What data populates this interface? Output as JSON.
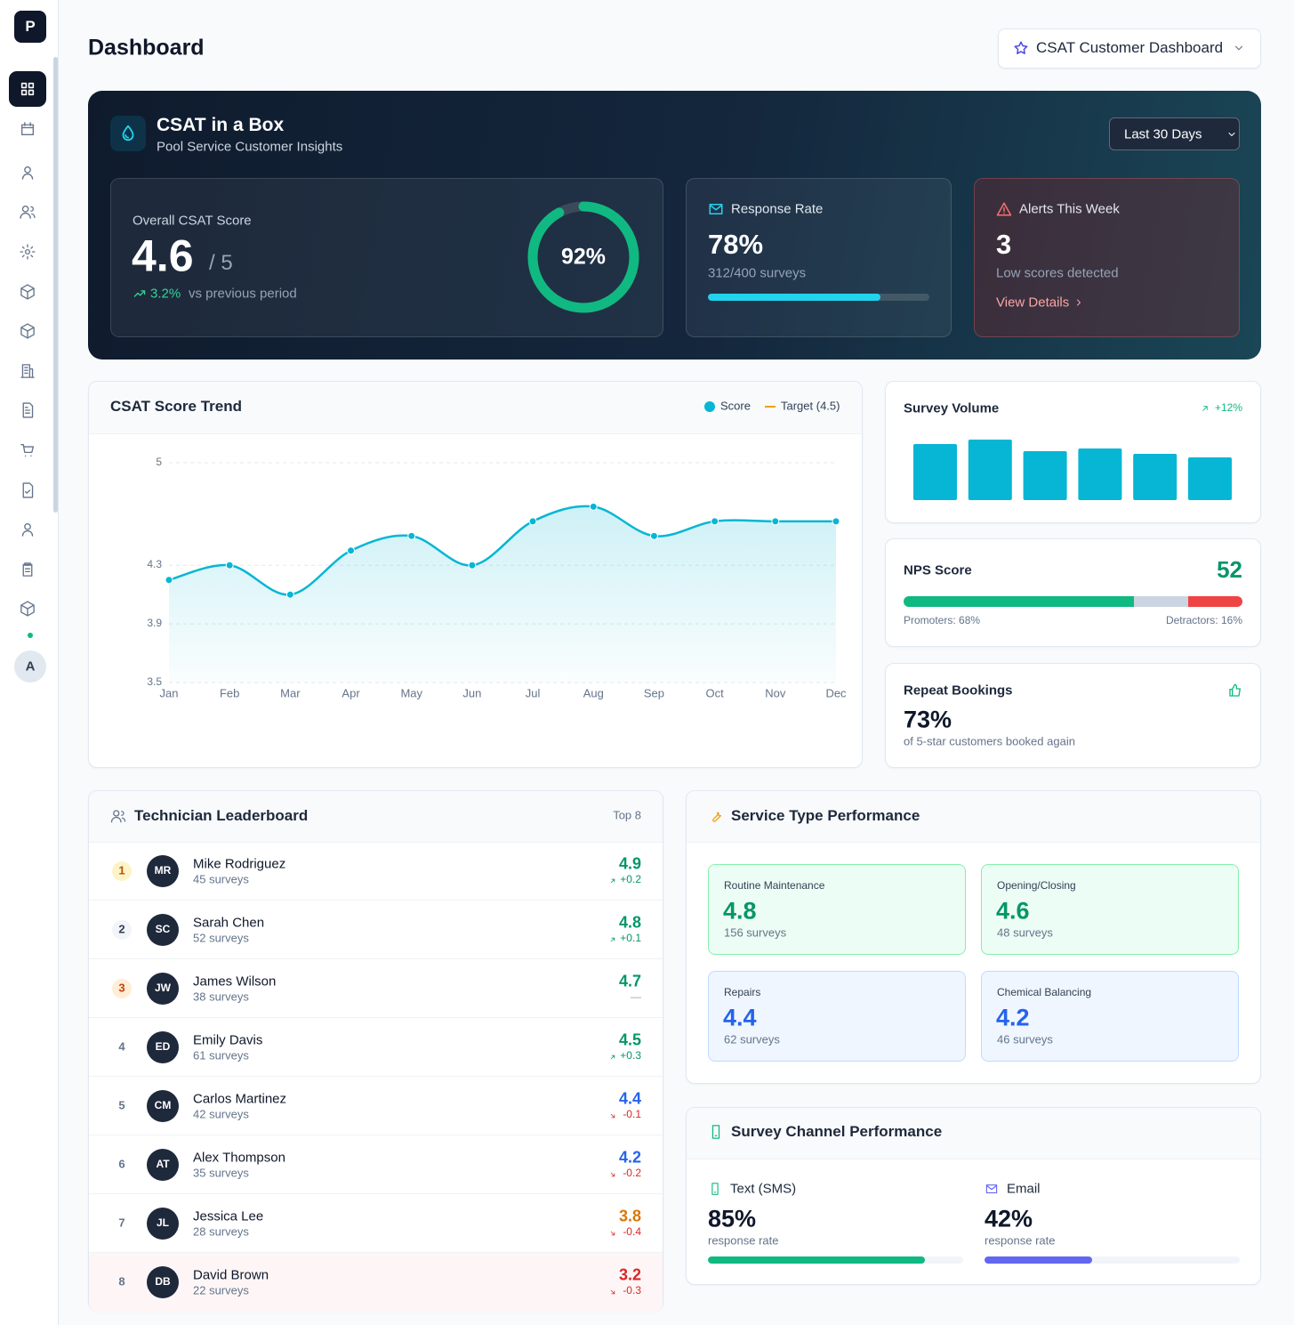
{
  "sidebar": {
    "logo": "P",
    "avatar": "A"
  },
  "header": {
    "title": "Dashboard",
    "dashboard_selector": "CSAT Customer Dashboard"
  },
  "hero": {
    "title": "CSAT in a Box",
    "subtitle": "Pool Service Customer Insights",
    "date_range": "Last 30 Days",
    "overall": {
      "label": "Overall CSAT Score",
      "score": "4.6",
      "scale": "/ 5",
      "change": "3.2%",
      "change_note": "vs previous period",
      "ring": {
        "value": 92,
        "label": "92%"
      }
    },
    "response_rate": {
      "label": "Response Rate",
      "rate": {
        "value": 78,
        "label": "78%"
      },
      "note": "312/400 surveys"
    },
    "alerts": {
      "label": "Alerts This Week",
      "count": "3",
      "note": "Low scores detected",
      "link": "View Details"
    }
  },
  "chart_data": [
    {
      "type": "line",
      "title": "CSAT Score Trend",
      "categories": [
        "Jan",
        "Feb",
        "Mar",
        "Apr",
        "May",
        "Jun",
        "Jul",
        "Aug",
        "Sep",
        "Oct",
        "Nov",
        "Dec"
      ],
      "series": [
        {
          "name": "Score",
          "color": "#06b6d4",
          "values": [
            4.2,
            4.3,
            4.1,
            4.4,
            4.5,
            4.3,
            4.6,
            4.7,
            4.5,
            4.6,
            4.6,
            4.6
          ]
        }
      ],
      "target": {
        "name": "Target (4.5)",
        "color": "#f59e0b"
      },
      "ylim": [
        3.5,
        5
      ],
      "yticks": [
        3.5,
        3.9,
        4.3,
        5
      ],
      "grid": true,
      "area": true
    },
    {
      "type": "bar",
      "title": "Survey Volume",
      "change": "+12%",
      "categories": [
        null,
        null,
        null,
        null,
        null,
        null
      ],
      "values": [
        63,
        68,
        55,
        58,
        52,
        48
      ],
      "color": "#06b6d4"
    }
  ],
  "nps": {
    "title": "NPS Score",
    "score": "52",
    "promoters": {
      "value": 68,
      "label": "Promoters: 68%"
    },
    "detractors": {
      "value": 16,
      "label": "Detractors: 16%"
    },
    "promoter_color": "#10b981",
    "detractor_color": "#ef4444"
  },
  "repeat_bookings": {
    "title": "Repeat Bookings",
    "rate": "73%",
    "note": "of 5-star customers booked again"
  },
  "leaderboard": {
    "title": "Technician Leaderboard",
    "badge": "Top 8",
    "rows": [
      {
        "rank": "1",
        "initials": "MR",
        "name": "Mike Rodriguez",
        "surveys": "45 surveys",
        "score": "4.9",
        "change": "+0.2",
        "tone": "green",
        "trend": "up",
        "medal": "gold"
      },
      {
        "rank": "2",
        "initials": "SC",
        "name": "Sarah Chen",
        "surveys": "52 surveys",
        "score": "4.8",
        "change": "+0.1",
        "tone": "green",
        "trend": "up",
        "medal": "silver"
      },
      {
        "rank": "3",
        "initials": "JW",
        "name": "James Wilson",
        "surveys": "38 surveys",
        "score": "4.7",
        "change": "—",
        "tone": "green",
        "trend": "flat",
        "medal": "bronze"
      },
      {
        "rank": "4",
        "initials": "ED",
        "name": "Emily Davis",
        "surveys": "61 surveys",
        "score": "4.5",
        "change": "+0.3",
        "tone": "green",
        "trend": "up"
      },
      {
        "rank": "5",
        "initials": "CM",
        "name": "Carlos Martinez",
        "surveys": "42 surveys",
        "score": "4.4",
        "change": "-0.1",
        "tone": "blue",
        "trend": "down"
      },
      {
        "rank": "6",
        "initials": "AT",
        "name": "Alex Thompson",
        "surveys": "35 surveys",
        "score": "4.2",
        "change": "-0.2",
        "tone": "blue",
        "trend": "down"
      },
      {
        "rank": "7",
        "initials": "JL",
        "name": "Jessica Lee",
        "surveys": "28 surveys",
        "score": "3.8",
        "change": "-0.4",
        "tone": "amber",
        "trend": "down"
      },
      {
        "rank": "8",
        "initials": "DB",
        "name": "David Brown",
        "surveys": "22 surveys",
        "score": "3.2",
        "change": "-0.3",
        "tone": "red",
        "trend": "down",
        "highlight": true
      }
    ]
  },
  "service_types": {
    "title": "Service Type Performance",
    "items": [
      {
        "name": "Routine Maintenance",
        "score": "4.8",
        "surveys": "156 surveys",
        "tone": "green"
      },
      {
        "name": "Opening/Closing",
        "score": "4.6",
        "surveys": "48 surveys",
        "tone": "green"
      },
      {
        "name": "Repairs",
        "score": "4.4",
        "surveys": "62 surveys",
        "tone": "blue"
      },
      {
        "name": "Chemical Balancing",
        "score": "4.2",
        "surveys": "46 surveys",
        "tone": "blue"
      }
    ]
  },
  "channels": {
    "title": "Survey Channel Performance",
    "items": [
      {
        "name": "Text (SMS)",
        "rate": {
          "value": 85,
          "label": "85%"
        },
        "note": "response rate",
        "color": "#10b981",
        "icon": "phone"
      },
      {
        "name": "Email",
        "rate": {
          "value": 42,
          "label": "42%"
        },
        "note": "response rate",
        "color": "#6366f1",
        "icon": "mail"
      }
    ]
  }
}
